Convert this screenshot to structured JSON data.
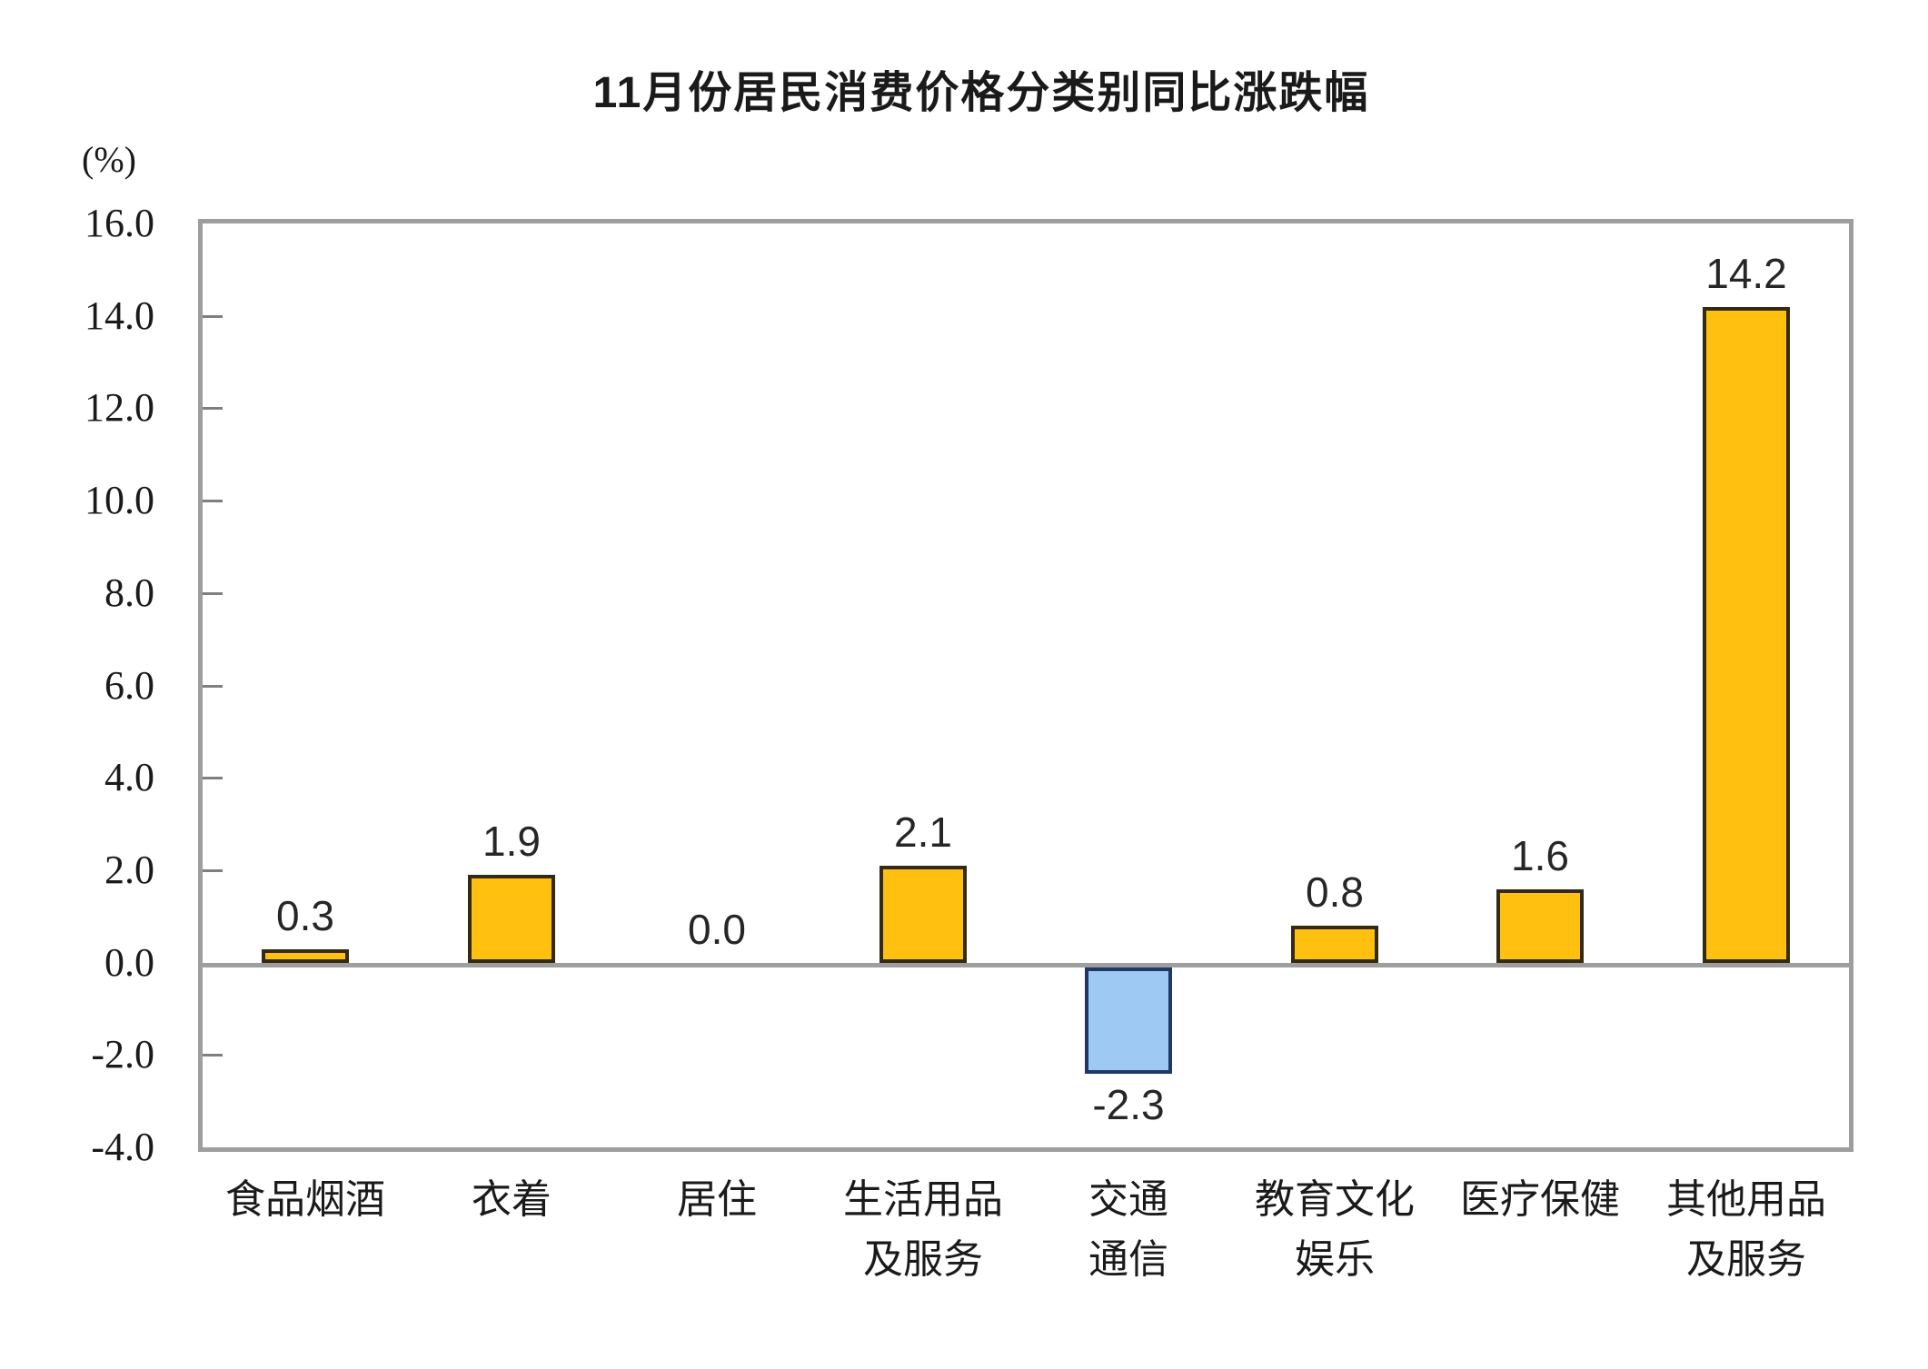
{
  "chart_data": {
    "type": "bar",
    "title": "11月份居民消费价格分类别同比涨跌幅",
    "unit_label": "(%)",
    "categories": [
      "食品烟酒",
      "衣着",
      "居住",
      "生活用品及服务",
      "交通通信",
      "教育文化娱乐",
      "医疗保健",
      "其他用品及服务"
    ],
    "category_display": [
      "食品烟酒",
      "衣着",
      "居住",
      "生活用品\n及服务",
      "交通\n通信",
      "教育文化\n娱乐",
      "医疗保健",
      "其他用品\n及服务"
    ],
    "values": [
      0.3,
      1.9,
      0.0,
      2.1,
      -2.3,
      0.8,
      1.6,
      14.2
    ],
    "value_labels": [
      "0.3",
      "1.9",
      "0.0",
      "2.1",
      "-2.3",
      "0.8",
      "1.6",
      "14.2"
    ],
    "ylabel": "(%)",
    "xlabel": "",
    "ylim": [
      -4.0,
      16.0
    ],
    "ytick_step": 2.0,
    "yticks": [
      16.0,
      14.0,
      12.0,
      10.0,
      8.0,
      6.0,
      4.0,
      2.0,
      0.0,
      -2.0,
      -4.0
    ],
    "ytick_labels": [
      "16.0",
      "14.0",
      "12.0",
      "10.0",
      "8.0",
      "6.0",
      "4.0",
      "2.0",
      "0.0",
      "-2.0",
      "-4.0"
    ],
    "grid": false,
    "legend": false,
    "colors": {
      "positive_fill": "#ffc010",
      "positive_border": "#332a11",
      "negative_fill": "#9dc9f3",
      "negative_border": "#1f3864",
      "axis_line": "#9e9e9e",
      "text": "#1a1a1a"
    }
  }
}
